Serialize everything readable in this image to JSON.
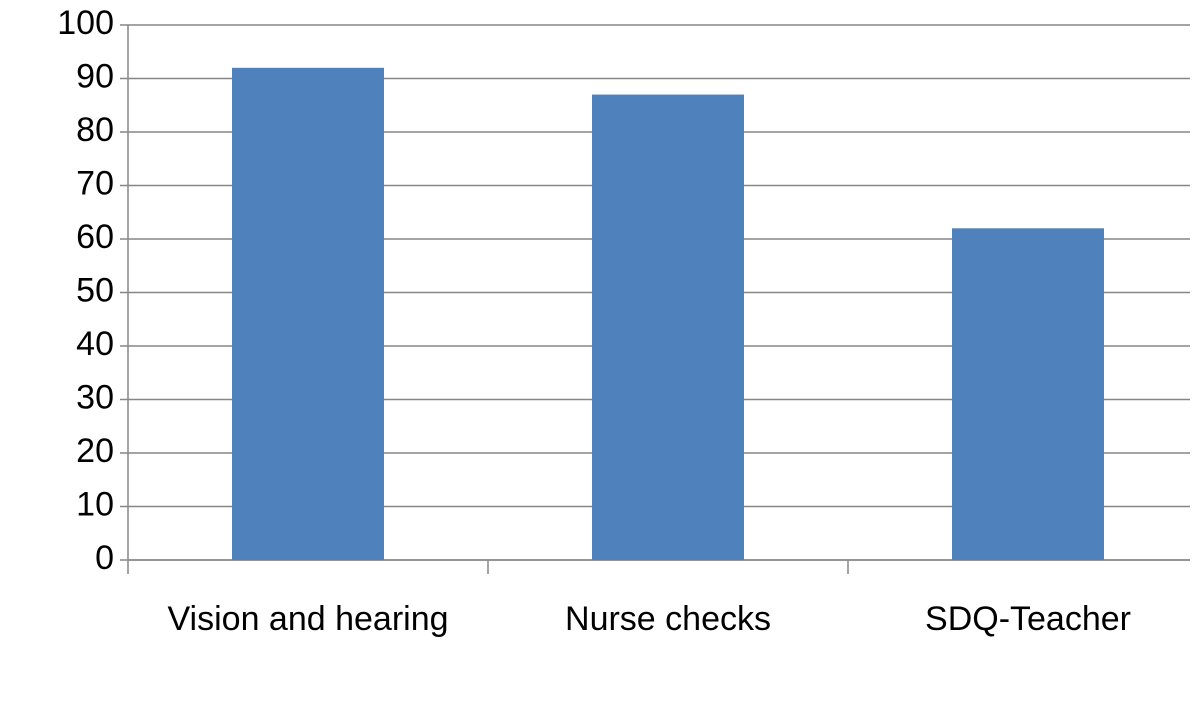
{
  "chart_data": {
    "type": "bar",
    "categories": [
      "Vision and hearing",
      "Nurse checks",
      "SDQ-Teacher"
    ],
    "values": [
      92,
      87,
      62
    ],
    "color": "#4f81bd",
    "ylim": [
      0,
      100
    ],
    "yticks": [
      0,
      10,
      20,
      30,
      40,
      50,
      60,
      70,
      80,
      90,
      100
    ],
    "grid": true
  }
}
